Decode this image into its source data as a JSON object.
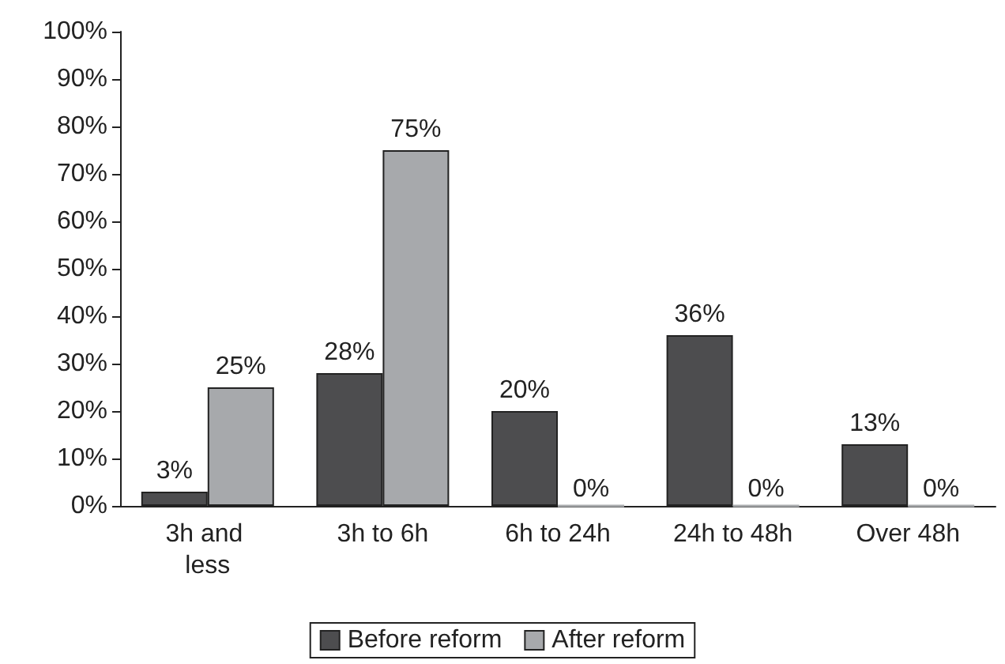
{
  "chart_data": {
    "type": "bar",
    "categories": [
      "3h and less",
      "3h to 6h",
      "6h to 24h",
      "24h to 48h",
      "Over 48h"
    ],
    "series": [
      {
        "name": "Before reform",
        "color": "#4d4d4f",
        "values": [
          3,
          28,
          20,
          36,
          13
        ],
        "value_labels": [
          "3%",
          "28%",
          "20%",
          "36%",
          "13%"
        ]
      },
      {
        "name": "After reform",
        "color": "#a7a9ac",
        "values": [
          25,
          75,
          0,
          0,
          0
        ],
        "value_labels": [
          "25%",
          "75%",
          "0%",
          "0%",
          "0%"
        ]
      }
    ],
    "ylim": [
      0,
      100
    ],
    "yticks": [
      {
        "value": 0,
        "label": "0%"
      },
      {
        "value": 10,
        "label": "10%"
      },
      {
        "value": 20,
        "label": "20%"
      },
      {
        "value": 30,
        "label": "30%"
      },
      {
        "value": 40,
        "label": "40%"
      },
      {
        "value": 50,
        "label": "50%"
      },
      {
        "value": 60,
        "label": "60%"
      },
      {
        "value": 70,
        "label": "70%"
      },
      {
        "value": 80,
        "label": "80%"
      },
      {
        "value": 90,
        "label": "90%"
      },
      {
        "value": 100,
        "label": "100%"
      }
    ],
    "grid": false,
    "legend": "bottom"
  }
}
